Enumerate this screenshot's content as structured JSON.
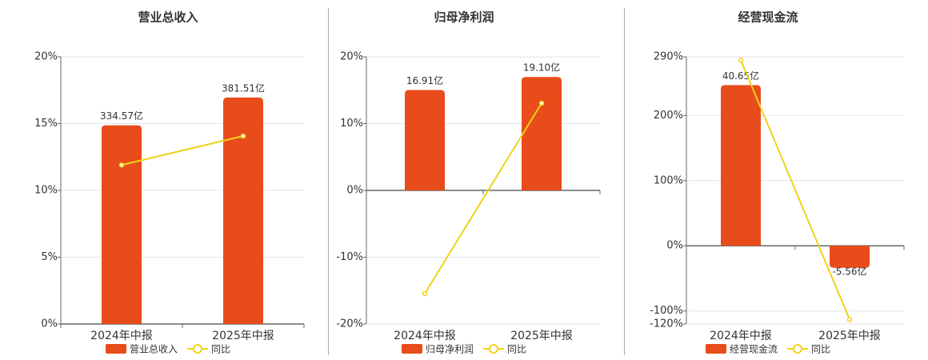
{
  "chart_data": [
    {
      "type": "combo",
      "title": "营业总收入",
      "categories": [
        "2024年中报",
        "2025年中报"
      ],
      "series": [
        {
          "name": "营业总收入",
          "type": "bar",
          "axis": "y2",
          "color": "#e84c1b",
          "values": [
            334.57,
            381.51
          ],
          "value_labels": [
            "334.57亿",
            "381.51亿"
          ]
        },
        {
          "name": "同比",
          "type": "line",
          "color": "#f0d21a",
          "values": [
            11.9,
            14.07
          ]
        }
      ],
      "ylim": [
        0,
        20
      ],
      "yticks": [
        {
          "value": 0,
          "label": "0%"
        },
        {
          "value": 5,
          "label": "5%"
        },
        {
          "value": 10,
          "label": "10%"
        },
        {
          "value": 15,
          "label": "15%"
        },
        {
          "value": 20,
          "label": "20%"
        }
      ],
      "y2lim": [
        0,
        450
      ],
      "grid": true,
      "legend": "bottom"
    },
    {
      "type": "combo",
      "title": "归母净利润",
      "categories": [
        "2024年中报",
        "2025年中报"
      ],
      "series": [
        {
          "name": "归母净利润",
          "type": "bar",
          "axis": "y2",
          "color": "#e84c1b",
          "values": [
            16.91,
            19.1
          ],
          "value_labels": [
            "16.91亿",
            "19.10亿"
          ]
        },
        {
          "name": "同比",
          "type": "line",
          "color": "#f0d21a",
          "values": [
            -15.45,
            13.05
          ]
        }
      ],
      "ylim": [
        -20,
        20
      ],
      "yticks": [
        {
          "value": -20,
          "label": "-20%"
        },
        {
          "value": -10,
          "label": "-10%"
        },
        {
          "value": 0,
          "label": "0%"
        },
        {
          "value": 10,
          "label": "10%"
        },
        {
          "value": 20,
          "label": "20%"
        }
      ],
      "y2lim": [
        -22.5,
        22.5
      ],
      "grid": true,
      "legend": "bottom"
    },
    {
      "type": "combo",
      "title": "经营现金流",
      "categories": [
        "2024年中报",
        "2025年中报"
      ],
      "series": [
        {
          "name": "经营现金流",
          "type": "bar",
          "axis": "y2",
          "color": "#e84c1b",
          "values": [
            40.65,
            -5.56
          ],
          "value_labels": [
            "40.65亿",
            "-5.56亿"
          ]
        },
        {
          "name": "同比",
          "type": "line",
          "color": "#f0d21a",
          "values": [
            284.8,
            -113
          ]
        }
      ],
      "ylim": [
        -120,
        290
      ],
      "yticks": [
        {
          "value": -120,
          "label": "-120%"
        },
        {
          "value": -100,
          "label": "-100%"
        },
        {
          "value": 0,
          "label": "0%"
        },
        {
          "value": 100,
          "label": "100%"
        },
        {
          "value": 200,
          "label": "200%"
        },
        {
          "value": 290,
          "label": "290%"
        }
      ],
      "y2lim": [
        -19.76,
        47.8
      ],
      "grid": true,
      "legend": "bottom"
    }
  ]
}
